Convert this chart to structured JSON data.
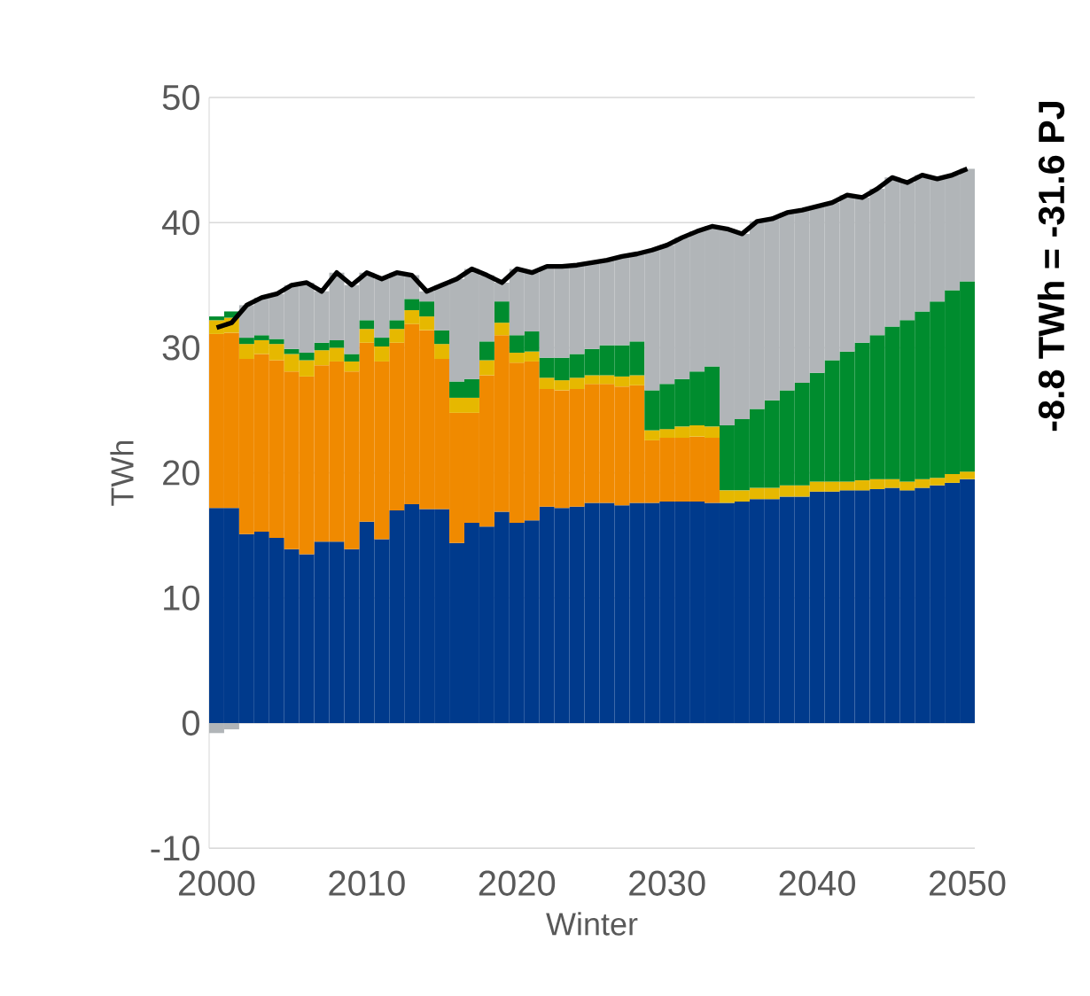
{
  "chart_data": {
    "type": "bar",
    "stacked": true,
    "xlabel": "Winter",
    "ylabel": "TWh",
    "grid": "y",
    "xlim": [
      1999.5,
      2050.5
    ],
    "xticks": [
      2000,
      2010,
      2020,
      2030,
      2040,
      2050
    ],
    "ylim": [
      -10,
      50
    ],
    "yticks": [
      -10,
      0,
      10,
      20,
      30,
      40,
      50
    ],
    "annotations": [
      "-8.8 TWh = -31.6 PJ"
    ],
    "x": [
      2000,
      2001,
      2002,
      2003,
      2004,
      2005,
      2006,
      2007,
      2008,
      2009,
      2010,
      2011,
      2012,
      2013,
      2014,
      2015,
      2016,
      2017,
      2018,
      2019,
      2020,
      2021,
      2022,
      2023,
      2024,
      2025,
      2026,
      2027,
      2028,
      2029,
      2030,
      2031,
      2032,
      2033,
      2034,
      2035,
      2036,
      2037,
      2038,
      2039,
      2040,
      2041,
      2042,
      2043,
      2044,
      2045,
      2046,
      2047,
      2048,
      2049,
      2050
    ],
    "series": [
      {
        "color": "#003a8c",
        "values": [
          17.2,
          17.2,
          15.1,
          15.3,
          14.8,
          13.9,
          13.5,
          14.5,
          14.5,
          13.9,
          16.1,
          14.7,
          17.0,
          17.5,
          17.1,
          17.1,
          14.4,
          16.0,
          15.7,
          16.9,
          16.0,
          16.2,
          17.3,
          17.2,
          17.3,
          17.6,
          17.6,
          17.4,
          17.6,
          17.6,
          17.7,
          17.7,
          17.7,
          17.6,
          17.6,
          17.7,
          17.9,
          17.9,
          18.1,
          18.1,
          18.5,
          18.5,
          18.6,
          18.6,
          18.7,
          18.8,
          18.6,
          18.8,
          19.0,
          19.2,
          19.5
        ]
      },
      {
        "color": "#f08a00",
        "values": [
          13.9,
          14.0,
          14.0,
          14.2,
          14.2,
          14.2,
          14.2,
          14.1,
          14.4,
          14.2,
          14.3,
          14.2,
          13.4,
          14.4,
          14.3,
          12.0,
          10.4,
          8.8,
          12.1,
          14.1,
          12.8,
          12.7,
          9.4,
          9.4,
          9.4,
          9.5,
          9.5,
          9.5,
          9.4,
          5.0,
          5.1,
          5.1,
          5.2,
          5.2,
          null,
          null,
          null,
          null,
          null,
          null,
          null,
          null,
          null,
          null,
          null,
          null,
          null,
          null,
          null,
          null,
          null
        ]
      },
      {
        "color": "#e6b800",
        "values": [
          1.1,
          1.2,
          1.2,
          1.1,
          1.3,
          1.4,
          1.3,
          1.2,
          1.1,
          0.8,
          1.1,
          1.2,
          1.1,
          1.1,
          1.1,
          1.2,
          1.2,
          1.2,
          1.2,
          1.0,
          0.8,
          0.8,
          0.9,
          0.8,
          0.9,
          0.7,
          0.7,
          0.8,
          0.8,
          0.8,
          0.7,
          0.9,
          0.9,
          0.9,
          1.0,
          0.9,
          0.9,
          0.9,
          0.9,
          0.9,
          0.8,
          0.8,
          0.7,
          0.8,
          0.8,
          0.7,
          0.7,
          0.7,
          0.6,
          0.7,
          0.6
        ]
      },
      {
        "color": "#008c2e",
        "values": [
          0.3,
          0.5,
          0.5,
          0.4,
          0.4,
          0.4,
          0.6,
          0.6,
          0.6,
          0.6,
          0.7,
          0.7,
          0.7,
          0.9,
          1.2,
          1.1,
          1.3,
          1.5,
          1.5,
          1.7,
          1.4,
          1.6,
          1.6,
          1.8,
          1.9,
          2.1,
          2.4,
          2.5,
          2.7,
          3.2,
          3.6,
          3.8,
          4.3,
          4.8,
          5.2,
          5.7,
          6.3,
          7.0,
          7.6,
          8.2,
          8.7,
          9.7,
          10.4,
          11.0,
          11.5,
          12.2,
          12.9,
          13.4,
          14.1,
          14.7,
          15.2
        ]
      },
      {
        "color": "#b1b5b8",
        "values": [
          -0.8,
          -0.5,
          2.6,
          3.0,
          3.6,
          5.1,
          5.6,
          4.1,
          5.4,
          5.5,
          3.8,
          4.7,
          3.8,
          1.9,
          0.8,
          3.6,
          8.2,
          8.8,
          5.3,
          1.5,
          5.3,
          4.7,
          7.3,
          7.3,
          7.1,
          6.9,
          6.8,
          7.1,
          7.0,
          11.2,
          11.1,
          11.3,
          11.2,
          11.2,
          15.7,
          14.8,
          15.0,
          14.5,
          14.2,
          13.8,
          13.3,
          12.6,
          12.5,
          11.6,
          11.7,
          11.9,
          11.0,
          10.9,
          9.8,
          9.2,
          9.0
        ]
      },
      {
        "type": "line",
        "color": "#000000",
        "values": [
          31.6,
          32.0,
          33.4,
          34.0,
          34.3,
          35.0,
          35.2,
          34.5,
          36.0,
          35.0,
          36.0,
          35.5,
          36.0,
          35.8,
          34.5,
          35.0,
          35.5,
          36.3,
          35.8,
          35.2,
          36.3,
          36.0,
          36.5,
          36.5,
          36.6,
          36.8,
          37.0,
          37.3,
          37.5,
          37.8,
          38.2,
          38.8,
          39.3,
          39.7,
          39.5,
          39.1,
          40.1,
          40.3,
          40.8,
          41.0,
          41.3,
          41.6,
          42.2,
          42.0,
          42.7,
          43.6,
          43.2,
          43.8,
          43.5,
          43.8,
          44.3
        ]
      }
    ]
  }
}
